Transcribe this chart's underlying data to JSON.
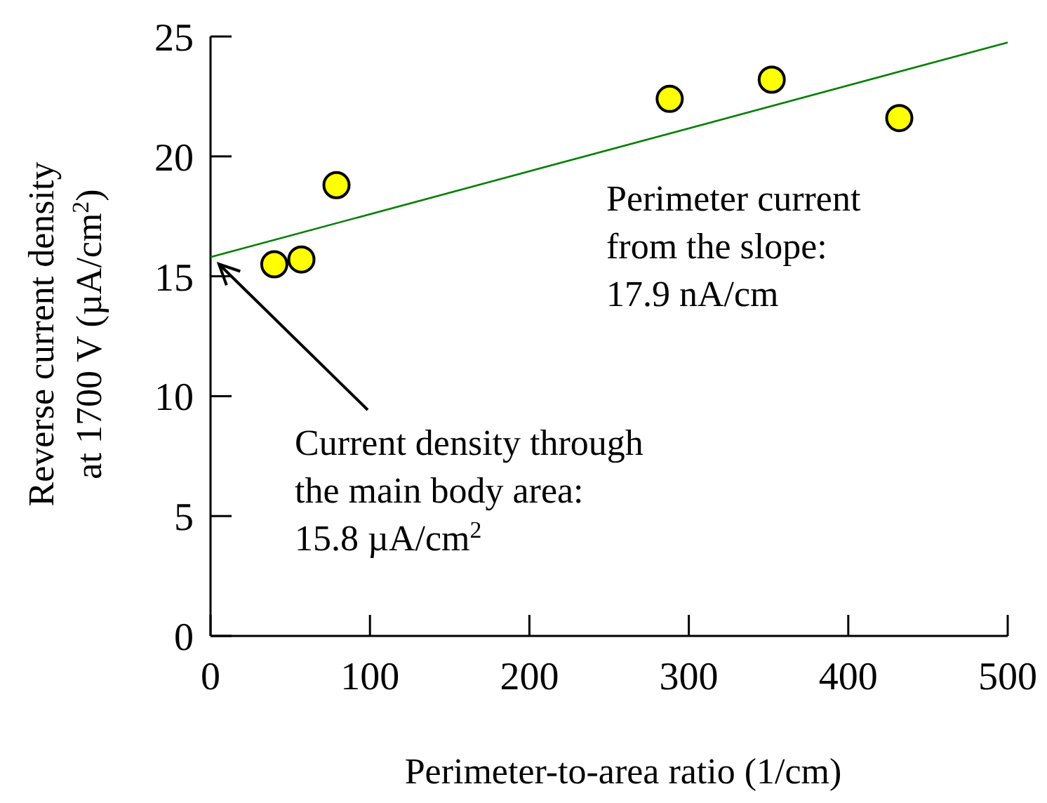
{
  "chart_data": {
    "type": "scatter",
    "xlabel": "Perimeter-to-area ratio (1/cm)",
    "ylabel": "Reverse current density\nat 1700 V  (µA/cm$^{2}$)",
    "xlim": [
      0,
      500
    ],
    "ylim": [
      0,
      25
    ],
    "xticks": [
      0,
      100,
      200,
      300,
      400,
      500
    ],
    "yticks": [
      0,
      5,
      10,
      15,
      20,
      25
    ],
    "series": [
      {
        "marker": "circle",
        "color": "#ffff00",
        "x": [
          40,
          57,
          79,
          288,
          352,
          432
        ],
        "values": [
          15.5,
          15.7,
          18.8,
          22.4,
          23.2,
          21.6
        ]
      },
      {
        "type": "line",
        "color": "#008000",
        "x": [
          0,
          500
        ],
        "values": [
          15.8,
          24.75
        ]
      }
    ],
    "annotations": [
      "Perimeter current\nfrom the slope:\n17.9 nA/cm",
      {
        "text": "Current density through\nthe main body area:\n15.8 µA/cm$^{2}$",
        "x": 0,
        "y": 15.8
      }
    ]
  }
}
